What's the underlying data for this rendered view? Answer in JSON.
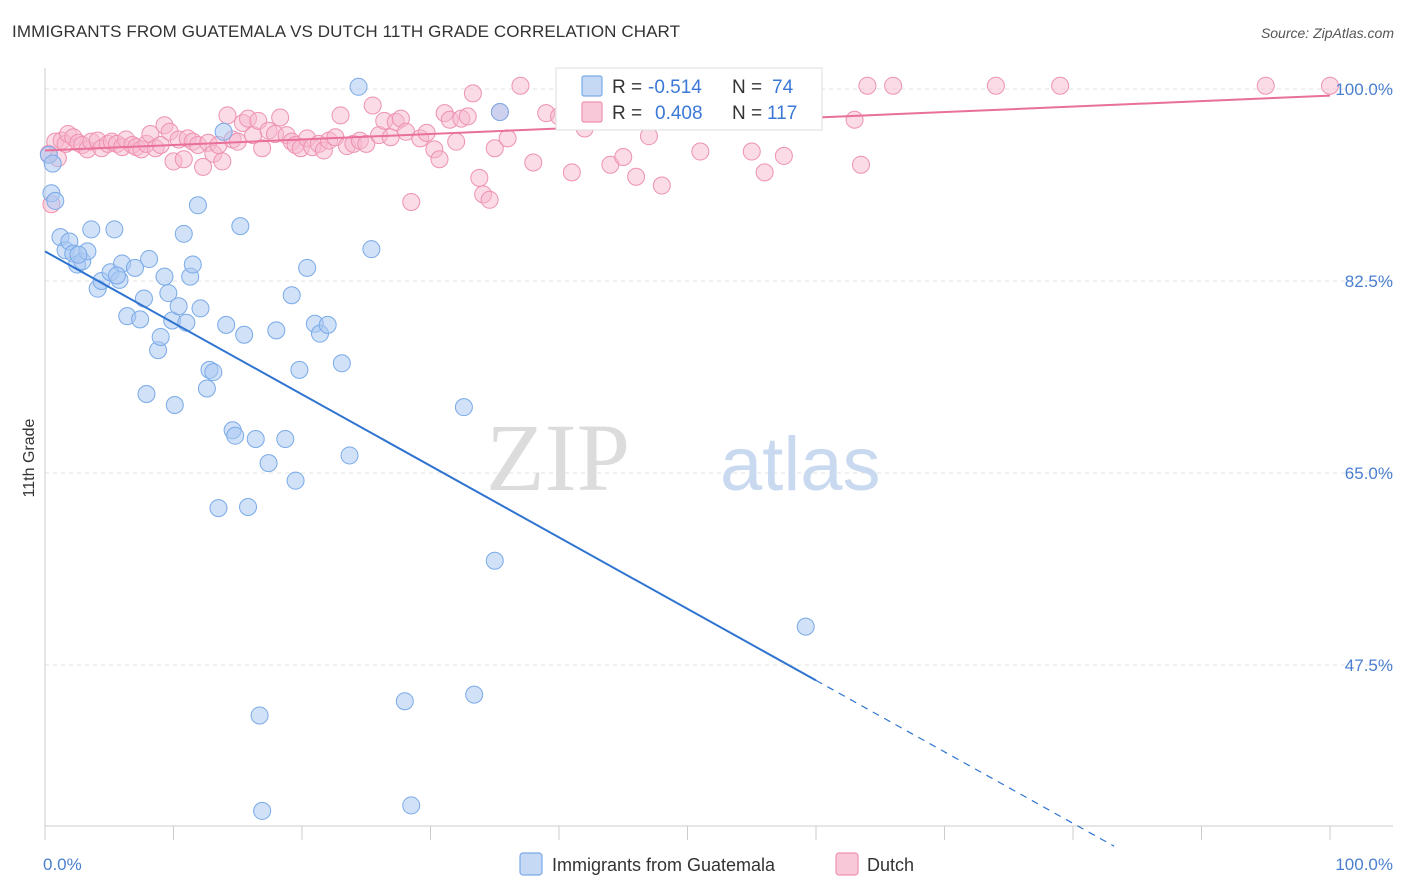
{
  "header": {
    "title": "IMMIGRANTS FROM GUATEMALA VS DUTCH 11TH GRADE CORRELATION CHART",
    "source": "Source: ZipAtlas.com"
  },
  "watermark": {
    "zip": "ZIP",
    "atlas": "atlas"
  },
  "stats": {
    "rows": [
      {
        "r_label": "R =",
        "r_value": "-0.514",
        "n_label": "N =",
        "n_value": "74",
        "color": "#a9c6f0"
      },
      {
        "r_label": "R =",
        "r_value": "0.408",
        "n_label": "N =",
        "n_value": "117",
        "color": "#f4a9c0"
      }
    ]
  },
  "colors": {
    "blue": "#7aaae8",
    "blue_line": "#2f74d0",
    "pink": "#ee92b0",
    "pink_line": "#e8709a",
    "grid": "#dddddd",
    "tick_text": "#4a7fd0"
  },
  "chart_data": {
    "type": "scatter",
    "title": "IMMIGRANTS FROM GUATEMALA VS DUTCH 11TH GRADE CORRELATION CHART",
    "xlabel": "",
    "ylabel": "11th Grade",
    "xlim": [
      0,
      100
    ],
    "ylim": [
      33,
      101.5
    ],
    "x_ticks": [
      "0.0%",
      "100.0%"
    ],
    "y_ticks": [
      {
        "value": 100,
        "label": "100.0%"
      },
      {
        "value": 82.5,
        "label": "82.5%"
      },
      {
        "value": 65,
        "label": "65.0%"
      },
      {
        "value": 47.5,
        "label": "47.5%"
      }
    ],
    "legend": [
      "Immigrants from Guatemala",
      "Dutch"
    ],
    "legend_position": "bottom-center",
    "grid": true,
    "series": [
      {
        "name": "Immigrants from Guatemala",
        "color": "#7aaae8",
        "r": -0.514,
        "n": 74,
        "trend": {
          "x0": 0,
          "y0": 85.2,
          "x1": 60,
          "y1": 46.1,
          "dash_to_x": 83.2
        },
        "points": [
          [
            0.3,
            94.0
          ],
          [
            0.5,
            90.5
          ],
          [
            0.8,
            89.8
          ],
          [
            1.2,
            86.5
          ],
          [
            1.6,
            85.3
          ],
          [
            1.9,
            86.1
          ],
          [
            2.2,
            85.0
          ],
          [
            2.5,
            84.0
          ],
          [
            2.9,
            84.3
          ],
          [
            3.3,
            85.2
          ],
          [
            3.6,
            87.2
          ],
          [
            4.1,
            81.8
          ],
          [
            4.4,
            82.5
          ],
          [
            5.1,
            83.3
          ],
          [
            5.4,
            87.2
          ],
          [
            5.8,
            82.6
          ],
          [
            6.0,
            84.1
          ],
          [
            6.4,
            79.3
          ],
          [
            7.0,
            83.7
          ],
          [
            7.4,
            79.0
          ],
          [
            7.7,
            80.9
          ],
          [
            7.9,
            72.2
          ],
          [
            8.1,
            84.5
          ],
          [
            8.8,
            76.2
          ],
          [
            9.0,
            77.4
          ],
          [
            9.3,
            82.9
          ],
          [
            9.6,
            81.4
          ],
          [
            9.9,
            78.9
          ],
          [
            10.1,
            71.2
          ],
          [
            10.4,
            80.2
          ],
          [
            10.8,
            86.8
          ],
          [
            11.0,
            78.7
          ],
          [
            11.3,
            82.9
          ],
          [
            11.5,
            84.0
          ],
          [
            11.9,
            89.4
          ],
          [
            12.6,
            72.7
          ],
          [
            12.8,
            74.4
          ],
          [
            13.1,
            74.2
          ],
          [
            13.5,
            61.8
          ],
          [
            13.9,
            96.1
          ],
          [
            14.1,
            78.5
          ],
          [
            14.6,
            68.9
          ],
          [
            14.8,
            68.4
          ],
          [
            15.2,
            87.5
          ],
          [
            15.5,
            77.6
          ],
          [
            15.8,
            61.9
          ],
          [
            16.4,
            68.1
          ],
          [
            16.7,
            42.9
          ],
          [
            16.9,
            34.2
          ],
          [
            17.4,
            65.9
          ],
          [
            18.7,
            68.1
          ],
          [
            19.2,
            81.2
          ],
          [
            19.5,
            64.3
          ],
          [
            19.8,
            74.4
          ],
          [
            20.4,
            83.7
          ],
          [
            21.0,
            78.6
          ],
          [
            21.4,
            77.7
          ],
          [
            22.0,
            78.5
          ],
          [
            23.1,
            75.0
          ],
          [
            23.7,
            66.6
          ],
          [
            24.4,
            100.2
          ],
          [
            25.4,
            85.4
          ],
          [
            28.0,
            44.2
          ],
          [
            28.5,
            34.7
          ],
          [
            32.6,
            71.0
          ],
          [
            33.4,
            44.8
          ],
          [
            35.0,
            57.0
          ],
          [
            35.4,
            97.9
          ],
          [
            59.2,
            51.0
          ],
          [
            0.6,
            93.2
          ],
          [
            2.6,
            84.9
          ],
          [
            5.6,
            83.0
          ],
          [
            12.1,
            80.0
          ],
          [
            18.0,
            78.0
          ]
        ]
      },
      {
        "name": "Dutch",
        "color": "#ee92b0",
        "r": 0.408,
        "n": 117,
        "trend": {
          "x0": 0,
          "y0": 94.4,
          "x1": 100,
          "y1": 99.4
        },
        "points": [
          [
            0.3,
            94.1
          ],
          [
            0.5,
            89.5
          ],
          [
            0.8,
            95.2
          ],
          [
            1.0,
            93.7
          ],
          [
            1.3,
            95.3
          ],
          [
            1.6,
            95.0
          ],
          [
            1.8,
            95.9
          ],
          [
            2.2,
            95.6
          ],
          [
            2.6,
            95.1
          ],
          [
            2.9,
            94.9
          ],
          [
            3.3,
            94.5
          ],
          [
            3.6,
            95.2
          ],
          [
            4.1,
            95.3
          ],
          [
            4.4,
            94.6
          ],
          [
            4.9,
            95.0
          ],
          [
            5.2,
            95.2
          ],
          [
            5.6,
            95.0
          ],
          [
            6.0,
            94.7
          ],
          [
            6.3,
            95.4
          ],
          [
            6.8,
            94.9
          ],
          [
            7.1,
            94.7
          ],
          [
            7.5,
            94.5
          ],
          [
            7.9,
            95.0
          ],
          [
            8.2,
            95.9
          ],
          [
            8.6,
            94.6
          ],
          [
            9.0,
            94.9
          ],
          [
            9.3,
            96.7
          ],
          [
            9.7,
            96.1
          ],
          [
            10.0,
            93.4
          ],
          [
            10.4,
            95.4
          ],
          [
            10.8,
            93.6
          ],
          [
            11.1,
            95.5
          ],
          [
            11.5,
            95.2
          ],
          [
            11.9,
            94.9
          ],
          [
            12.3,
            92.9
          ],
          [
            12.7,
            95.1
          ],
          [
            13.1,
            94.1
          ],
          [
            13.5,
            94.9
          ],
          [
            13.8,
            93.4
          ],
          [
            14.2,
            97.6
          ],
          [
            14.6,
            95.4
          ],
          [
            15.0,
            95.2
          ],
          [
            15.4,
            96.9
          ],
          [
            15.8,
            97.3
          ],
          [
            16.2,
            95.8
          ],
          [
            16.6,
            97.1
          ],
          [
            16.9,
            94.6
          ],
          [
            17.4,
            96.2
          ],
          [
            17.9,
            95.9
          ],
          [
            18.3,
            97.4
          ],
          [
            18.8,
            95.8
          ],
          [
            19.2,
            95.2
          ],
          [
            19.5,
            94.9
          ],
          [
            19.9,
            94.6
          ],
          [
            20.4,
            95.5
          ],
          [
            20.8,
            94.7
          ],
          [
            21.3,
            95.0
          ],
          [
            21.7,
            94.4
          ],
          [
            22.1,
            95.3
          ],
          [
            22.6,
            95.6
          ],
          [
            23.0,
            97.6
          ],
          [
            23.5,
            94.8
          ],
          [
            24.0,
            95.0
          ],
          [
            24.5,
            95.3
          ],
          [
            25.0,
            95.0
          ],
          [
            25.5,
            98.5
          ],
          [
            26.0,
            95.8
          ],
          [
            26.4,
            97.1
          ],
          [
            26.9,
            95.6
          ],
          [
            27.3,
            97.0
          ],
          [
            27.7,
            97.3
          ],
          [
            28.1,
            96.1
          ],
          [
            28.5,
            89.7
          ],
          [
            29.2,
            95.5
          ],
          [
            29.7,
            96.0
          ],
          [
            30.3,
            94.5
          ],
          [
            30.7,
            93.6
          ],
          [
            31.1,
            97.8
          ],
          [
            31.5,
            97.2
          ],
          [
            32.0,
            95.2
          ],
          [
            32.4,
            97.3
          ],
          [
            32.9,
            97.5
          ],
          [
            33.3,
            99.6
          ],
          [
            33.8,
            91.9
          ],
          [
            34.1,
            90.4
          ],
          [
            34.6,
            89.9
          ],
          [
            35.0,
            94.6
          ],
          [
            35.4,
            97.9
          ],
          [
            36.0,
            95.5
          ],
          [
            37.0,
            100.3
          ],
          [
            38.0,
            93.3
          ],
          [
            39.0,
            97.8
          ],
          [
            40.0,
            97.5
          ],
          [
            41.0,
            92.4
          ],
          [
            42.0,
            96.4
          ],
          [
            43.0,
            99.4
          ],
          [
            44.0,
            93.1
          ],
          [
            45.0,
            93.8
          ],
          [
            46.0,
            92.0
          ],
          [
            47.0,
            95.7
          ],
          [
            48.0,
            91.2
          ],
          [
            49.0,
            99.8
          ],
          [
            51.0,
            94.3
          ],
          [
            53.0,
            99.6
          ],
          [
            55.0,
            94.3
          ],
          [
            56.0,
            92.4
          ],
          [
            57.0,
            99.4
          ],
          [
            57.5,
            93.9
          ],
          [
            59.0,
            100.3
          ],
          [
            63.0,
            97.2
          ],
          [
            63.5,
            93.1
          ],
          [
            64.0,
            100.3
          ],
          [
            66.0,
            100.3
          ],
          [
            74.0,
            100.3
          ],
          [
            79.0,
            100.3
          ],
          [
            95.0,
            100.3
          ],
          [
            100.0,
            100.3
          ]
        ]
      }
    ]
  }
}
